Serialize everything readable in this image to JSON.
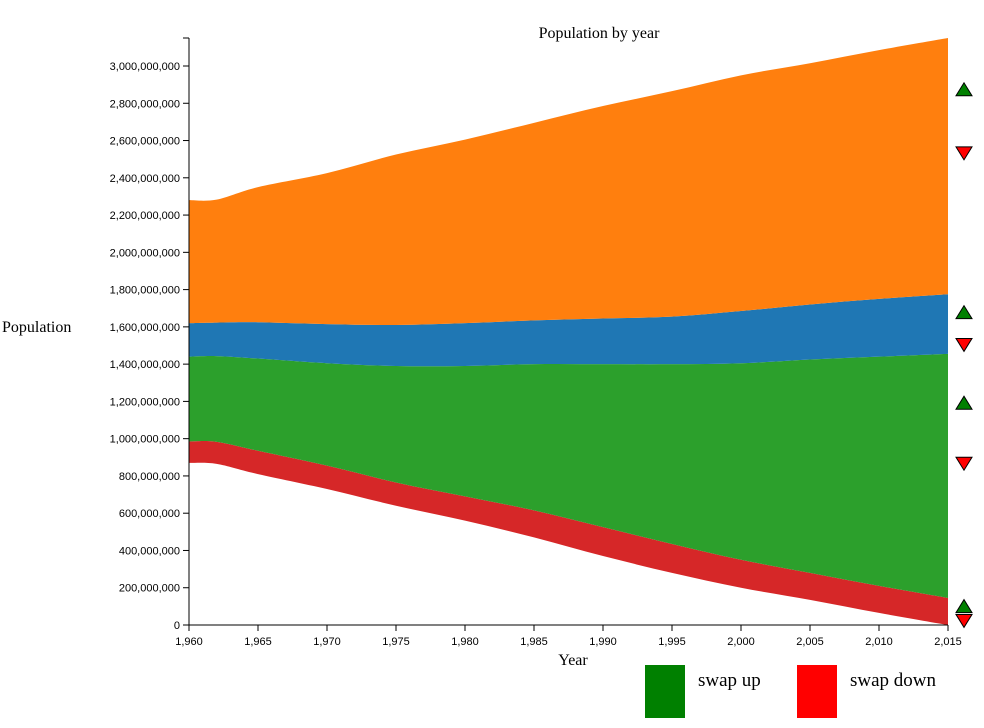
{
  "chart_data": {
    "type": "area",
    "subtype": "stacked",
    "title": "Population by year",
    "xlabel": "Year",
    "ylabel": "Population",
    "xlim": [
      1960,
      2015
    ],
    "ylim": [
      0,
      3150000000
    ],
    "x_ticks": [
      1960,
      1965,
      1970,
      1975,
      1980,
      1985,
      1990,
      1995,
      2000,
      2005,
      2010,
      2015
    ],
    "x_tick_labels": [
      "1,960",
      "1,965",
      "1,970",
      "1,975",
      "1,980",
      "1,985",
      "1,990",
      "1,995",
      "2,000",
      "2,005",
      "2,010",
      "2,015"
    ],
    "y_ticks": [
      0,
      200000000,
      400000000,
      600000000,
      800000000,
      1000000000,
      1200000000,
      1400000000,
      1600000000,
      1800000000,
      2000000000,
      2200000000,
      2400000000,
      2600000000,
      2800000000,
      3000000000
    ],
    "y_tick_labels": [
      "0",
      "200,000,000",
      "400,000,000",
      "600,000,000",
      "800,000,000",
      "1,000,000,000",
      "1,200,000,000",
      "1,400,000,000",
      "1,600,000,000",
      "1,800,000,000",
      "2,000,000,000",
      "2,200,000,000",
      "2,400,000,000",
      "2,600,000,000",
      "2,800,000,000",
      "3,000,000,000"
    ],
    "grid": false,
    "x": [
      1960,
      1962,
      1965,
      1970,
      1975,
      1980,
      1985,
      1990,
      1995,
      2000,
      2005,
      2010,
      2015
    ],
    "series": [
      {
        "color": "#ffffff",
        "values": [
          870000000,
          865000000,
          810000000,
          730000000,
          640000000,
          560000000,
          470000000,
          370000000,
          280000000,
          200000000,
          135000000,
          65000000,
          0
        ]
      },
      {
        "color": "#d62728",
        "values": [
          115000000,
          118000000,
          125000000,
          125000000,
          125000000,
          130000000,
          145000000,
          155000000,
          155000000,
          150000000,
          145000000,
          145000000,
          145000000
        ]
      },
      {
        "color": "#2ca02c",
        "values": [
          455000000,
          460000000,
          495000000,
          550000000,
          625000000,
          700000000,
          785000000,
          875000000,
          965000000,
          1055000000,
          1145000000,
          1230000000,
          1310000000
        ]
      },
      {
        "color": "#1f77b4",
        "values": [
          180000000,
          180000000,
          195000000,
          210000000,
          220000000,
          230000000,
          235000000,
          245000000,
          255000000,
          280000000,
          295000000,
          310000000,
          320000000
        ]
      },
      {
        "color": "#ff7f0e",
        "values": [
          660000000,
          660000000,
          725000000,
          810000000,
          915000000,
          985000000,
          1060000000,
          1140000000,
          1210000000,
          1265000000,
          1295000000,
          1335000000,
          1375000000
        ]
      }
    ],
    "swap_up_color": "#008000",
    "swap_down_color": "#ff0000"
  },
  "legend": {
    "swap_up_label": "swap up",
    "swap_down_label": "swap down",
    "swap_up_color": "#008000",
    "swap_down_color": "#ff0000"
  }
}
